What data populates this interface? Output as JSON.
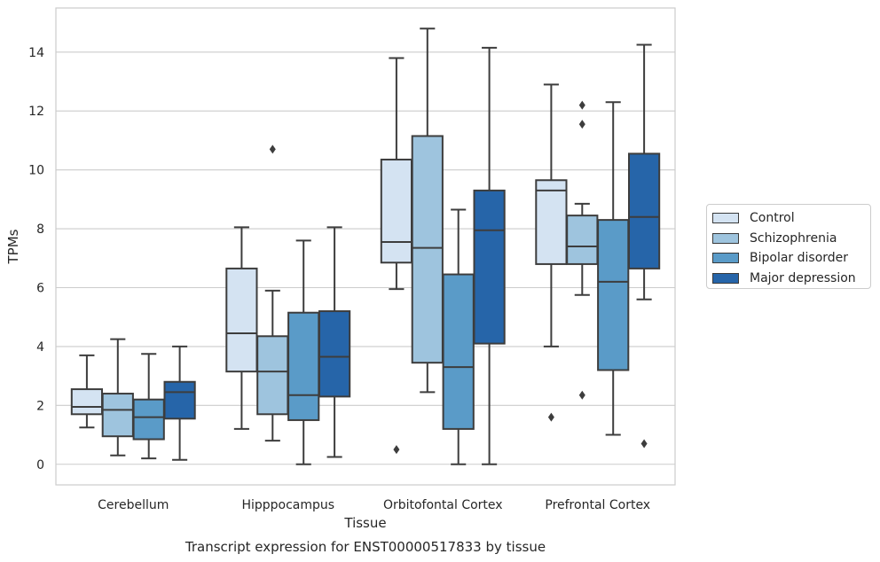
{
  "chart_data": {
    "type": "box",
    "title": "Transcript expression for ENST00000517833 by tissue",
    "xlabel": "Tissue",
    "ylabel": "TPMs",
    "ylim": [
      -0.7,
      15.5
    ],
    "yticks": [
      0,
      2,
      4,
      6,
      8,
      10,
      12,
      14
    ],
    "categories": [
      "Cerebellum",
      "Hipppocampus",
      "Orbitofontal Cortex",
      "Prefrontal Cortex"
    ],
    "legend_position": "right",
    "grid": true,
    "series": [
      {
        "name": "Control",
        "color": "#d4e3f2",
        "boxes": [
          {
            "whislo": 1.25,
            "q1": 1.7,
            "med": 1.95,
            "q3": 2.55,
            "whishi": 3.7,
            "fliers": []
          },
          {
            "whislo": 1.2,
            "q1": 3.15,
            "med": 4.45,
            "q3": 6.65,
            "whishi": 8.05,
            "fliers": []
          },
          {
            "whislo": 5.95,
            "q1": 6.85,
            "med": 7.55,
            "q3": 10.35,
            "whishi": 13.8,
            "fliers": [
              0.5
            ]
          },
          {
            "whislo": 4.0,
            "q1": 6.8,
            "med": 9.3,
            "q3": 9.65,
            "whishi": 12.9,
            "fliers": [
              1.6
            ]
          }
        ]
      },
      {
        "name": "Schizophrenia",
        "color": "#9ec4de",
        "boxes": [
          {
            "whislo": 0.3,
            "q1": 0.95,
            "med": 1.85,
            "q3": 2.4,
            "whishi": 4.25,
            "fliers": []
          },
          {
            "whislo": 0.8,
            "q1": 1.7,
            "med": 3.15,
            "q3": 4.35,
            "whishi": 5.9,
            "fliers": [
              10.7
            ]
          },
          {
            "whislo": 2.45,
            "q1": 3.45,
            "med": 7.35,
            "q3": 11.15,
            "whishi": 14.8,
            "fliers": []
          },
          {
            "whislo": 5.75,
            "q1": 6.8,
            "med": 7.4,
            "q3": 8.45,
            "whishi": 8.85,
            "fliers": [
              2.35,
              11.55,
              12.2
            ]
          }
        ]
      },
      {
        "name": "Bipolar disorder",
        "color": "#5a9bc8",
        "boxes": [
          {
            "whislo": 0.2,
            "q1": 0.85,
            "med": 1.6,
            "q3": 2.2,
            "whishi": 3.75,
            "fliers": []
          },
          {
            "whislo": 0.0,
            "q1": 1.5,
            "med": 2.35,
            "q3": 5.15,
            "whishi": 7.6,
            "fliers": []
          },
          {
            "whislo": 0.0,
            "q1": 1.2,
            "med": 3.3,
            "q3": 6.45,
            "whishi": 8.65,
            "fliers": []
          },
          {
            "whislo": 1.0,
            "q1": 3.2,
            "med": 6.2,
            "q3": 8.3,
            "whishi": 12.3,
            "fliers": []
          }
        ]
      },
      {
        "name": "Major depression",
        "color": "#2665a9",
        "boxes": [
          {
            "whislo": 0.15,
            "q1": 1.55,
            "med": 2.45,
            "q3": 2.8,
            "whishi": 4.0,
            "fliers": []
          },
          {
            "whislo": 0.25,
            "q1": 2.3,
            "med": 3.65,
            "q3": 5.2,
            "whishi": 8.05,
            "fliers": []
          },
          {
            "whislo": 0.0,
            "q1": 4.1,
            "med": 7.95,
            "q3": 9.3,
            "whishi": 14.15,
            "fliers": []
          },
          {
            "whislo": 5.6,
            "q1": 6.65,
            "med": 8.4,
            "q3": 10.55,
            "whishi": 14.25,
            "fliers": [
              0.7
            ]
          }
        ]
      }
    ]
  }
}
